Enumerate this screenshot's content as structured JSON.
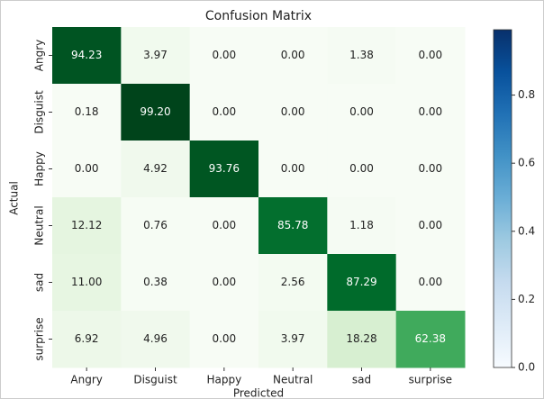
{
  "chart_data": {
    "type": "heatmap",
    "title": "Confusion Matrix",
    "x_label": "Predicted",
    "y_label": "Actual",
    "categories": [
      "Angry",
      "Disguist",
      "Happy",
      "Neutral",
      "sad",
      "surprise"
    ],
    "row_categories": [
      "Angry",
      "Disguist",
      "Happy",
      "Neutral",
      "sad",
      "surprise"
    ],
    "values": [
      [
        94.23,
        3.97,
        0,
        0,
        1.38,
        0
      ],
      [
        0.18,
        99.2,
        0,
        0,
        0,
        0
      ],
      [
        0,
        4.92,
        93.76,
        0,
        0,
        0
      ],
      [
        12.12,
        0.76,
        0,
        85.78,
        1.18,
        0
      ],
      [
        11.0,
        0.38,
        0,
        2.56,
        87.29,
        0
      ],
      [
        6.92,
        4.96,
        0,
        3.97,
        18.28,
        62.38
      ]
    ],
    "value_labels": [
      [
        "94.23",
        "3.97",
        "0.00",
        "0.00",
        "1.38",
        "0.00"
      ],
      [
        "0.18",
        "99.20",
        "0.00",
        "0.00",
        "0.00",
        "0.00"
      ],
      [
        "0.00",
        "4.92",
        "93.76",
        "0.00",
        "0.00",
        "0.00"
      ],
      [
        "12.12",
        "0.76",
        "0.00",
        "85.78",
        "1.18",
        "0.00"
      ],
      [
        "11.00",
        "0.38",
        "0.00",
        "2.56",
        "87.29",
        "0.00"
      ],
      [
        "6.92",
        "4.96",
        "0.00",
        "3.97",
        "18.28",
        "62.38"
      ]
    ],
    "cmap": "Greens",
    "colorbar_cmap": "Blues",
    "clim": [
      0,
      0.992
    ],
    "cticks": [
      {
        "value": 0,
        "label": "0.0"
      },
      0.2,
      0.4,
      0.6,
      0.8
    ]
  }
}
